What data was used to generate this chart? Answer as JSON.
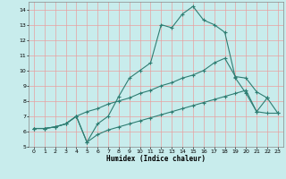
{
  "xlabel": "Humidex (Indice chaleur)",
  "xlim": [
    -0.5,
    23.5
  ],
  "ylim": [
    5,
    14.5
  ],
  "xticks": [
    0,
    1,
    2,
    3,
    4,
    5,
    6,
    7,
    8,
    9,
    10,
    11,
    12,
    13,
    14,
    15,
    16,
    17,
    18,
    19,
    20,
    21,
    22,
    23
  ],
  "yticks": [
    5,
    6,
    7,
    8,
    9,
    10,
    11,
    12,
    13,
    14
  ],
  "background_color": "#c8ecec",
  "grid_color": "#e8a0a0",
  "line_color": "#2e7d72",
  "line1_x": [
    0,
    1,
    2,
    3,
    4,
    5,
    6,
    7,
    8,
    9,
    10,
    11,
    12,
    13,
    14,
    15,
    16,
    17,
    18,
    19,
    20,
    21,
    22
  ],
  "line1_y": [
    6.2,
    6.2,
    6.3,
    6.5,
    7.0,
    5.3,
    6.5,
    7.0,
    8.3,
    9.5,
    10.0,
    10.5,
    13.0,
    12.8,
    13.7,
    14.2,
    13.3,
    13.0,
    12.5,
    9.5,
    8.5,
    7.3,
    8.2
  ],
  "line2_x": [
    0,
    1,
    2,
    3,
    4,
    5,
    6,
    7,
    8,
    9,
    10,
    11,
    12,
    13,
    14,
    15,
    16,
    17,
    18,
    19,
    20,
    21,
    22,
    23
  ],
  "line2_y": [
    6.2,
    6.2,
    6.3,
    6.5,
    7.0,
    7.3,
    7.5,
    7.8,
    8.0,
    8.2,
    8.5,
    8.7,
    9.0,
    9.2,
    9.5,
    9.7,
    10.0,
    10.5,
    10.8,
    9.6,
    9.5,
    8.6,
    8.2,
    7.2
  ],
  "line3_x": [
    0,
    1,
    2,
    3,
    4,
    5,
    6,
    7,
    8,
    9,
    10,
    11,
    12,
    13,
    14,
    15,
    16,
    17,
    18,
    19,
    20,
    21,
    22,
    23
  ],
  "line3_y": [
    6.2,
    6.2,
    6.3,
    6.5,
    7.0,
    5.3,
    5.8,
    6.1,
    6.3,
    6.5,
    6.7,
    6.9,
    7.1,
    7.3,
    7.5,
    7.7,
    7.9,
    8.1,
    8.3,
    8.5,
    8.7,
    7.3,
    7.2,
    7.2
  ]
}
